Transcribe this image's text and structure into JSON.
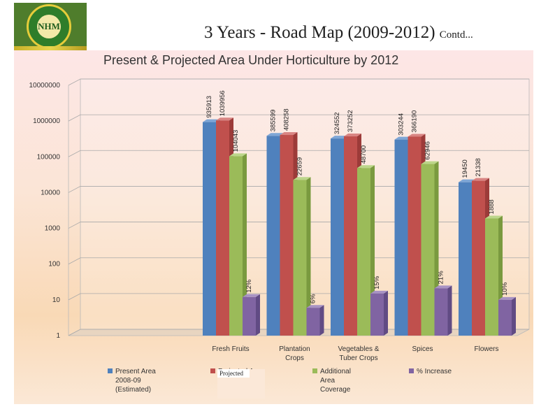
{
  "header": {
    "title": "3 Years - Road Map (2009-2012)",
    "title_suffix": "Contd...",
    "logo_text": "NHM"
  },
  "overlay": {
    "projected_label": "Projected"
  },
  "colors": {
    "present": "#4f81bd",
    "projected": "#c0504d",
    "additional": "#9bbb59",
    "increase": "#8064a2"
  },
  "chart_data": {
    "type": "bar",
    "title": "Present & Projected Area Under Horticulture by 2012",
    "yscale": "log",
    "ylim": [
      1,
      10000000
    ],
    "yticks": [
      "1",
      "10",
      "100",
      "1000",
      "10000",
      "100000",
      "1000000",
      "10000000"
    ],
    "categories": [
      [
        "Fresh Fruits"
      ],
      [
        "Plantation",
        "Crops"
      ],
      [
        "Vegetables &",
        "Tuber Crops"
      ],
      [
        "Spices"
      ],
      [
        "Flowers"
      ]
    ],
    "series": [
      {
        "name": [
          "Present Area",
          "2008-09",
          "(Estimated)"
        ],
        "values": [
          935913,
          385599,
          324552,
          303244,
          19450
        ],
        "labels": [
          "935913",
          "385599",
          "324552",
          "303244",
          "19450"
        ]
      },
      {
        "name": [
          "Projected Area",
          ""
        ],
        "values": [
          1039956,
          408258,
          373252,
          366190,
          21338
        ],
        "labels": [
          "1039956",
          "408258",
          "373252",
          "366190",
          "21338"
        ]
      },
      {
        "name": [
          "Additional",
          "Area",
          "Coverage"
        ],
        "values": [
          104043,
          22659,
          48700,
          62946,
          1888
        ],
        "labels": [
          "104043",
          "22659",
          "48700",
          "62946",
          "1888"
        ]
      },
      {
        "name": [
          "% Increase"
        ],
        "values": [
          12,
          6,
          15,
          21,
          10
        ],
        "labels": [
          "12%",
          "6%",
          "15%",
          "21%",
          "10%"
        ]
      }
    ]
  }
}
